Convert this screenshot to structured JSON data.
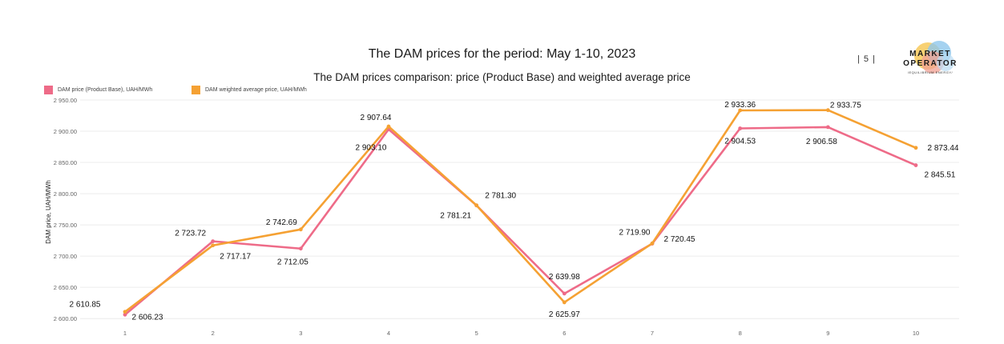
{
  "header": {
    "title": "The DAM prices for the period: May 1-10, 2023",
    "subtitle": "The DAM prices comparison: price (Product Base) and weighted average price",
    "page_number": "| 5 |"
  },
  "logo": {
    "line1": "MARKET",
    "line2": "OPERATOR",
    "tagline": "/EQUILIBRIUM ENERGY/"
  },
  "colors": {
    "base": "#ee6b88",
    "weighted": "#f5a133"
  },
  "chart_data": {
    "type": "line",
    "title": "The DAM prices comparison: price (Product Base) and weighted average price",
    "xlabel": "",
    "ylabel": "DAM price, UAH/MWh",
    "x": [
      1,
      2,
      3,
      4,
      5,
      6,
      7,
      8,
      9,
      10
    ],
    "x_tick_labels": [
      "1",
      "2",
      "3",
      "4",
      "5",
      "6",
      "7",
      "8",
      "9",
      "10"
    ],
    "ylim": [
      2590,
      2950
    ],
    "y_ticks": [
      2600,
      2650,
      2700,
      2750,
      2800,
      2850,
      2900,
      2950
    ],
    "y_tick_labels": [
      "2 600.00",
      "2 650.00",
      "2 700.00",
      "2 750.00",
      "2 800.00",
      "2 850.00",
      "2 900.00",
      "2 950.00"
    ],
    "grid": true,
    "legend_position": "top-left",
    "series": [
      {
        "name": "DAM price (Product Base), UAH/MWh",
        "values": [
          2606.23,
          2723.72,
          2712.05,
          2903.1,
          2781.21,
          2639.98,
          2719.9,
          2904.53,
          2906.58,
          2845.51
        ],
        "labels": [
          "2 606.23",
          "2 723.72",
          "2 712.05",
          "2 903.10",
          "2 781.21",
          "2 639.98",
          "2 719.90",
          "2 904.53",
          "2 906.58",
          "2 845.51"
        ],
        "color": "#ee6b88"
      },
      {
        "name": "DAM weighted average price, UAH/MWh",
        "values": [
          2610.85,
          2717.17,
          2742.69,
          2907.64,
          2781.3,
          2625.97,
          2720.45,
          2933.36,
          2933.75,
          2873.44
        ],
        "labels": [
          "2 610.85",
          "2 717.17",
          "2 742.69",
          "2 907.64",
          "2 781.30",
          "2 625.97",
          "2 720.45",
          "2 933.36",
          "2 933.75",
          "2 873.44"
        ],
        "color": "#f5a133"
      }
    ]
  }
}
